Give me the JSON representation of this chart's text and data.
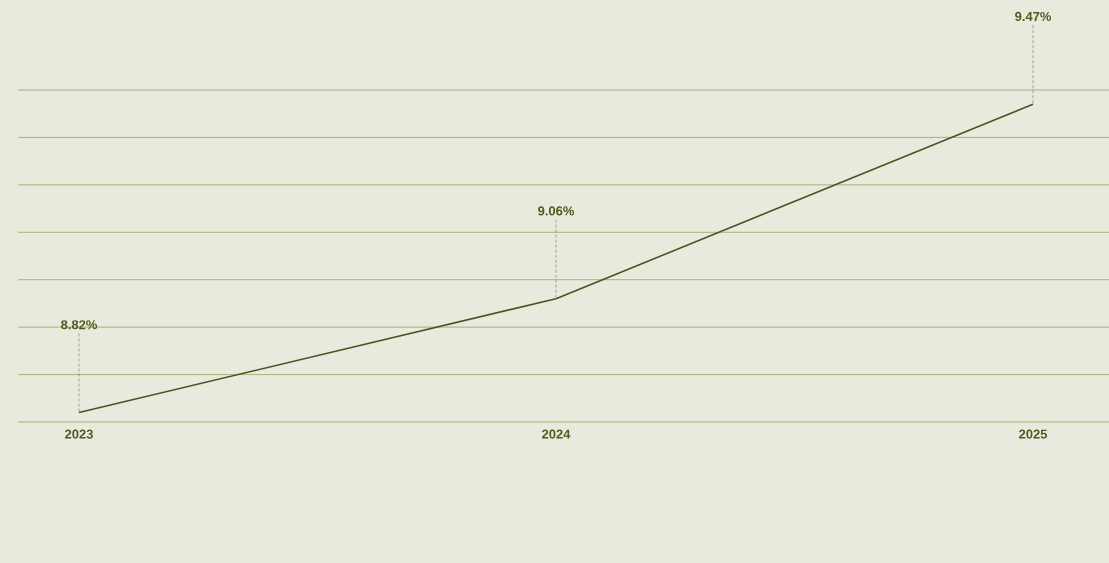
{
  "chart_data": {
    "type": "line",
    "categories": [
      "2023",
      "2024",
      "2025"
    ],
    "series": [
      {
        "color": "#4b5320",
        "values": [
          8.82,
          9.06,
          9.47
        ],
        "value_labels": [
          "8.82%",
          "9.06%",
          "9.47%"
        ]
      }
    ],
    "ylim": [
      8.8,
      9.5
    ],
    "yticks": [
      {
        "value": 8.8,
        "label": null
      },
      {
        "value": 8.9,
        "label": null
      },
      {
        "value": 9.0,
        "label": null
      },
      {
        "value": 9.1,
        "label": null
      },
      {
        "value": 9.2,
        "label": null
      },
      {
        "value": 9.3,
        "label": null
      },
      {
        "value": 9.4,
        "label": null
      },
      {
        "value": 9.5,
        "label": null
      }
    ],
    "grid": "y",
    "tick_labels": "x"
  }
}
